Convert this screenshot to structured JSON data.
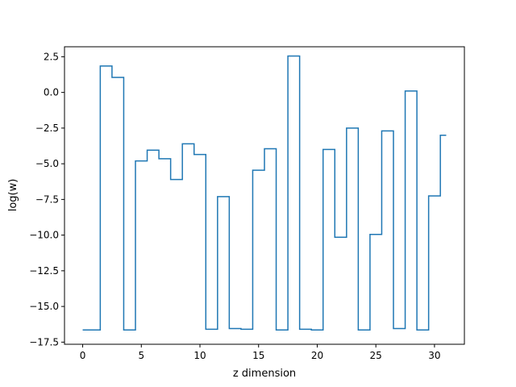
{
  "chart_data": {
    "type": "line",
    "drawstyle": "steps-mid",
    "title": "",
    "xlabel": "z dimension",
    "ylabel": "log(w)",
    "xlim": [
      -1.55,
      32.55
    ],
    "ylim": [
      -17.65,
      3.2
    ],
    "xticks": [
      0,
      5,
      10,
      15,
      20,
      25,
      30
    ],
    "xtick_labels": [
      "0",
      "5",
      "10",
      "15",
      "20",
      "25",
      "30"
    ],
    "yticks": [
      2.5,
      0.0,
      -2.5,
      -5.0,
      -7.5,
      -10.0,
      -12.5,
      -15.0,
      -17.5
    ],
    "ytick_labels": [
      "2.5",
      "0.0",
      "−2.5",
      "−5.0",
      "−7.5",
      "−10.0",
      "−12.5",
      "−15.0",
      "−17.5"
    ],
    "grid": false,
    "legend": "none",
    "series": [
      {
        "color": "#1f77b4",
        "x": [
          0,
          1,
          2,
          3,
          4,
          5,
          6,
          7,
          8,
          9,
          10,
          11,
          12,
          13,
          14,
          15,
          16,
          17,
          18,
          19,
          20,
          21,
          22,
          23,
          24,
          25,
          26,
          27,
          28,
          29,
          30,
          31
        ],
        "values": [
          -16.65,
          -16.65,
          1.85,
          1.05,
          -16.65,
          -4.8,
          -4.05,
          -4.65,
          -6.1,
          -3.6,
          -4.35,
          -16.6,
          -7.3,
          -16.55,
          -16.6,
          -5.45,
          -3.95,
          -16.65,
          2.55,
          -16.6,
          -16.65,
          -4.0,
          -10.15,
          -2.5,
          -16.65,
          -9.95,
          -2.7,
          -16.55,
          0.1,
          -16.65,
          -7.25,
          -3.0
        ]
      }
    ]
  }
}
